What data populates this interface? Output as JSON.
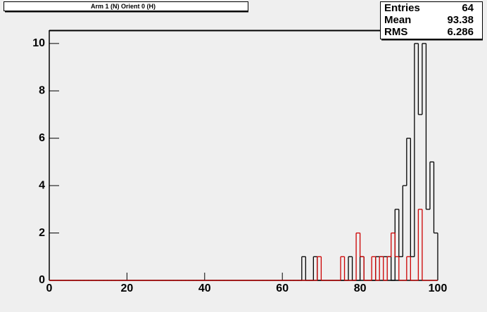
{
  "chart_data": {
    "type": "histogram",
    "title": "Arm 1 (N) Orient 0 (H)",
    "bins": [
      0,
      1,
      2,
      3,
      4,
      5,
      6,
      7,
      8,
      9,
      10,
      11,
      12,
      13,
      14,
      15,
      16,
      17,
      18,
      19,
      20,
      21,
      22,
      23,
      24,
      25,
      26,
      27,
      28,
      29,
      30,
      31,
      32,
      33,
      34,
      35,
      36,
      37,
      38,
      39,
      40,
      41,
      42,
      43,
      44,
      45,
      46,
      47,
      48,
      49,
      50,
      51,
      52,
      53,
      54,
      55,
      56,
      57,
      58,
      59,
      60,
      61,
      62,
      63,
      64,
      65,
      66,
      67,
      68,
      69,
      70,
      71,
      72,
      73,
      74,
      75,
      76,
      77,
      78,
      79,
      80,
      81,
      82,
      83,
      84,
      85,
      86,
      87,
      88,
      89,
      90,
      91,
      92,
      93,
      94,
      95,
      96,
      97,
      98,
      99,
      100
    ],
    "series": [
      {
        "color": "#000000",
        "values": [
          0,
          0,
          0,
          0,
          0,
          0,
          0,
          0,
          0,
          0,
          0,
          0,
          0,
          0,
          0,
          0,
          0,
          0,
          0,
          0,
          0,
          0,
          0,
          0,
          0,
          0,
          0,
          0,
          0,
          0,
          0,
          0,
          0,
          0,
          0,
          0,
          0,
          0,
          0,
          0,
          0,
          0,
          0,
          0,
          0,
          0,
          0,
          0,
          0,
          0,
          0,
          0,
          0,
          0,
          0,
          0,
          0,
          0,
          0,
          0,
          0,
          0,
          0,
          0,
          0,
          1,
          0,
          0,
          1,
          0,
          0,
          0,
          0,
          0,
          0,
          0,
          0,
          1,
          0,
          0,
          1,
          0,
          0,
          0,
          1,
          1,
          1,
          1,
          0,
          3,
          1,
          4,
          6,
          1,
          10,
          7,
          10,
          3,
          5,
          2
        ]
      },
      {
        "color": "#cc0000",
        "values": [
          0,
          0,
          0,
          0,
          0,
          0,
          0,
          0,
          0,
          0,
          0,
          0,
          0,
          0,
          0,
          0,
          0,
          0,
          0,
          0,
          0,
          0,
          0,
          0,
          0,
          0,
          0,
          0,
          0,
          0,
          0,
          0,
          0,
          0,
          0,
          0,
          0,
          0,
          0,
          0,
          0,
          0,
          0,
          0,
          0,
          0,
          0,
          0,
          0,
          0,
          0,
          0,
          0,
          0,
          0,
          0,
          0,
          0,
          0,
          0,
          0,
          0,
          0,
          0,
          0,
          0,
          0,
          0,
          0,
          1,
          0,
          0,
          0,
          0,
          0,
          1,
          0,
          0,
          0,
          2,
          1,
          0,
          0,
          1,
          0,
          1,
          0,
          1,
          2,
          1,
          0,
          0,
          1,
          0,
          0,
          3,
          0,
          0,
          0,
          0
        ]
      }
    ],
    "xlim": [
      0,
      100
    ],
    "xticks": [
      0,
      20,
      40,
      60,
      80,
      100
    ],
    "ylim": [
      0,
      10.56
    ],
    "yticks": [
      0,
      2,
      4,
      6,
      8,
      10
    ],
    "stats": {
      "labels": [
        "Entries",
        "Mean",
        "RMS"
      ],
      "values": [
        64,
        93.38,
        6.286
      ]
    }
  }
}
